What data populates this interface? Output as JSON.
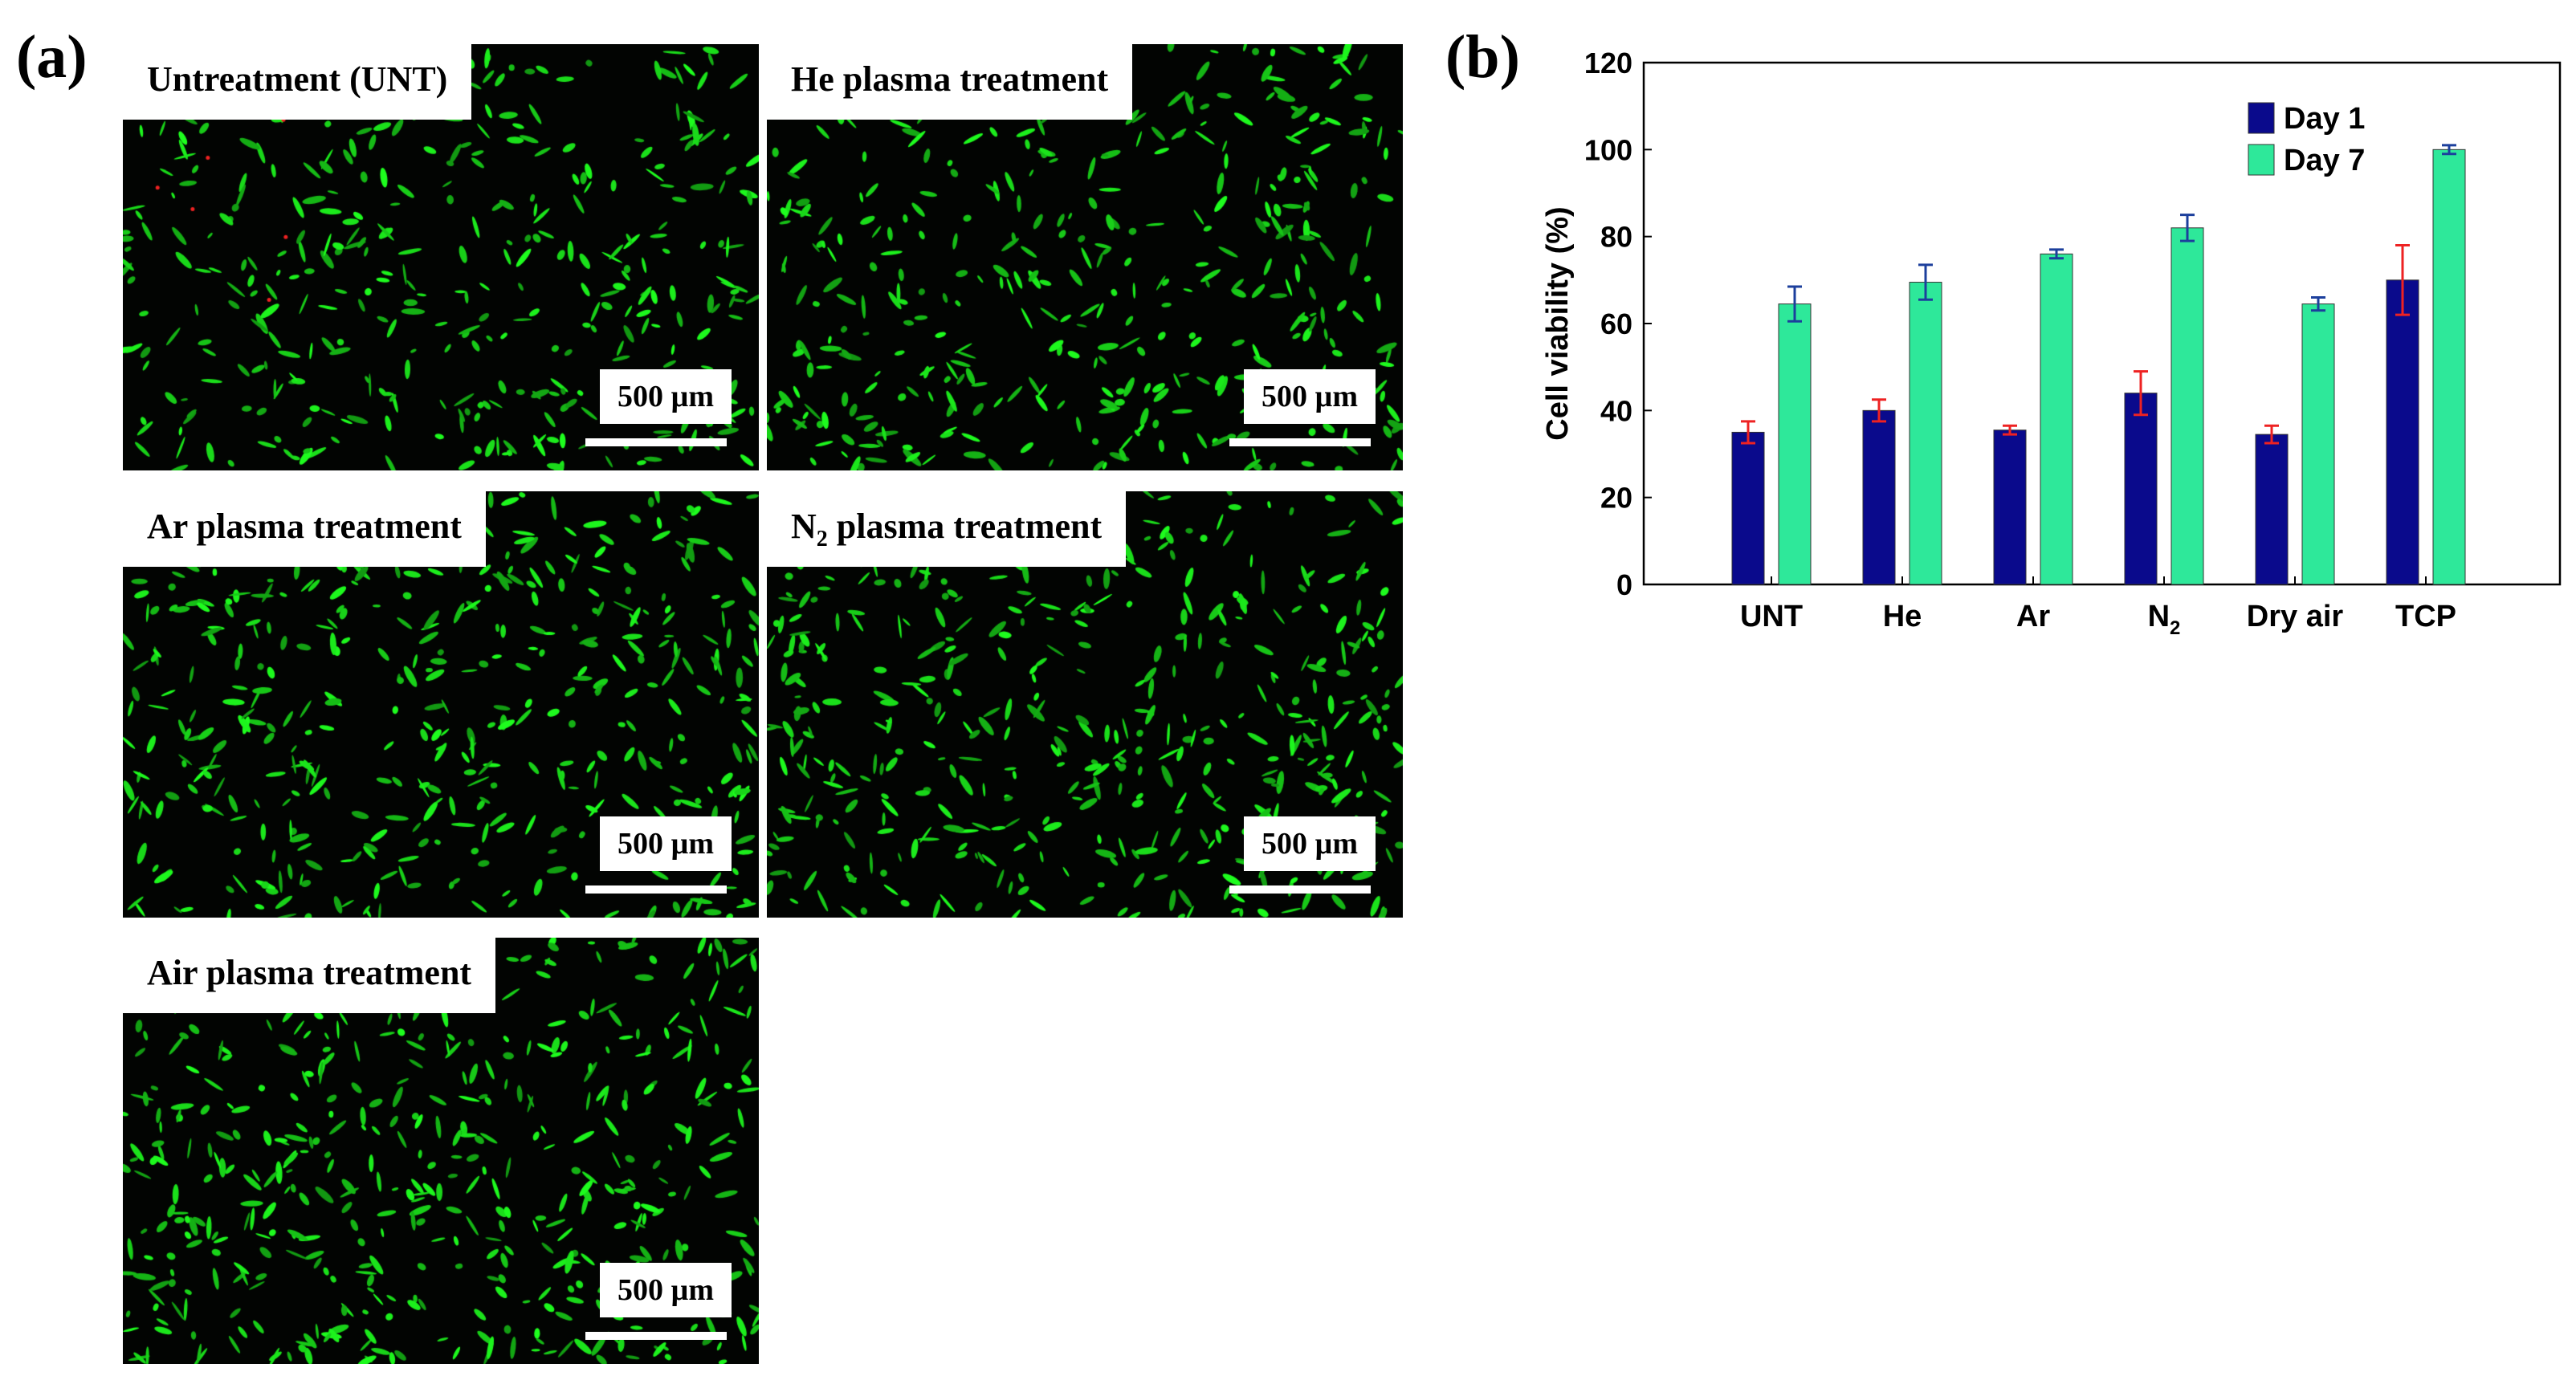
{
  "panel_a": {
    "label": "(a)",
    "images": [
      {
        "title_main": "Untreatment (UNT)",
        "title_sub": "",
        "title_rest": "",
        "scale_label": "500 µm",
        "has_red_dots": true
      },
      {
        "title_main": "He plasma treatment",
        "title_sub": "",
        "title_rest": "",
        "scale_label": "500 µm",
        "has_red_dots": false
      },
      {
        "title_main": "Ar plasma treatment",
        "title_sub": "",
        "title_rest": "",
        "scale_label": "500 µm",
        "has_red_dots": false
      },
      {
        "title_main": "N",
        "title_sub": "2",
        "title_rest": " plasma treatment",
        "scale_label": "500 µm",
        "has_red_dots": false
      },
      {
        "title_main": "Air plasma treatment",
        "title_sub": "",
        "title_rest": "",
        "scale_label": "500 µm",
        "has_red_dots": false
      }
    ],
    "colors": {
      "background": "#020402",
      "cells": "#22dd22",
      "dead_cells": "#ee2222"
    }
  },
  "panel_b": {
    "label": "(b)"
  },
  "chart_data": {
    "type": "bar",
    "title": "",
    "xlabel": "",
    "ylabel": "Cell viability (%)",
    "ylim": [
      0,
      120
    ],
    "yticks": [
      "0",
      "20",
      "40",
      "60",
      "80",
      "100",
      "120"
    ],
    "categories": [
      {
        "main": "UNT",
        "sub": ""
      },
      {
        "main": "He",
        "sub": ""
      },
      {
        "main": "Ar",
        "sub": ""
      },
      {
        "main": "N",
        "sub": "2"
      },
      {
        "main": "Dry air",
        "sub": ""
      },
      {
        "main": "TCP",
        "sub": ""
      }
    ],
    "series": [
      {
        "name": "Day 1",
        "color": "#0a0a8c",
        "error_color": "#ee2222",
        "values": [
          35,
          40,
          35.5,
          44,
          34.5,
          70
        ],
        "errors": [
          2.5,
          2.5,
          1,
          5,
          2,
          8
        ]
      },
      {
        "name": "Day 7",
        "color": "#2ee89a",
        "error_color": "#1c3f9c",
        "values": [
          64.5,
          69.5,
          76,
          82,
          64.5,
          100
        ],
        "errors": [
          4,
          4,
          1,
          3,
          1.5,
          1
        ]
      }
    ],
    "grid": false,
    "legend_position": "top-right"
  }
}
